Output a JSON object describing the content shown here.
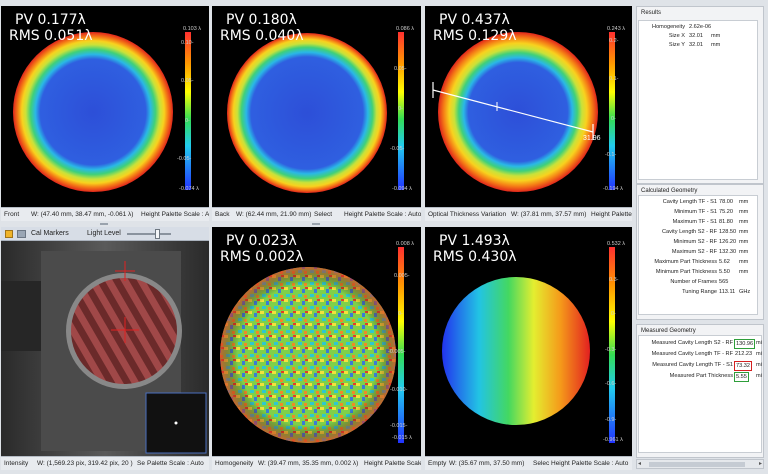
{
  "panels": {
    "front": {
      "pv": "PV 0.177λ",
      "rms": "RMS 0.051λ",
      "ticks": [
        "0.103 λ",
        "0.10-",
        "0.05-",
        "0-",
        "-0.05-",
        "-0.074 λ"
      ],
      "status_name": "Front",
      "status_window": "W: (47.40 mm, 38.47 mm, -0.061 λ)",
      "status_palette": "Height Palette Scale : Au"
    },
    "back": {
      "pv": "PV 0.180λ",
      "rms": "RMS 0.040λ",
      "ticks": [
        "0.086 λ",
        "0.05-",
        "0-",
        "-0.05-",
        "-0.094 λ"
      ],
      "status_name": "Back",
      "status_window": "W: (62.44 mm, 21.90 mm)",
      "status_select": "Select",
      "status_palette": "Height Palette Scale : Auto"
    },
    "otv": {
      "pv": "PV 0.437λ",
      "rms": "RMS 0.129λ",
      "ticks": [
        "0.243 λ",
        "0.2-",
        "0.1-",
        "0-",
        "-0.1-",
        "-0.194 λ"
      ],
      "line_label": "31.96",
      "status_name": "Optical Thickness Variation",
      "status_window": "W: (37.81 mm, 37.57 mm)",
      "status_palette": "Height Palette Scale : Auto"
    },
    "intensity": {
      "toolbar_cal": "Cal Markers",
      "toolbar_light": "Light Level",
      "status_name": "Intensity",
      "status_window": "W: (1,569.23 pix, 319.42 pix, 20 )",
      "status_s": "Se",
      "status_palette": "Palette Scale : Auto"
    },
    "homogeneity": {
      "pv": "PV 0.023λ",
      "rms": "RMS 0.002λ",
      "ticks": [
        "0.008 λ",
        "0.005-",
        "0-",
        "-0.005-",
        "-0.010-",
        "-0.015-",
        "-0.015 λ"
      ],
      "status_name": "Homogeneity",
      "status_window": "W: (39.47 mm, 35.35 mm, 0.002 λ)",
      "status_palette": "Height Palette Scale"
    },
    "empty": {
      "pv": "PV 1.493λ",
      "rms": "RMS 0.430λ",
      "ticks": [
        "0.532 λ",
        "0.3-",
        "0-",
        "-0.3-",
        "-0.6-",
        "-0.9-",
        "-0.961 λ"
      ],
      "status_name": "Empty",
      "status_window": "W: (35.67 mm, 37.50 mm)",
      "status_select": "Selec",
      "status_palette": "Height Palette Scale : Auto"
    }
  },
  "results": {
    "title": "Results",
    "rows": [
      {
        "label": "Homogeneity",
        "value": "2.62e-06",
        "unit": ""
      },
      {
        "label": "Size X",
        "value": "32.01",
        "unit": "mm"
      },
      {
        "label": "Size Y",
        "value": "32.01",
        "unit": "mm"
      }
    ]
  },
  "calculated": {
    "title": "Calculated Geometry",
    "rows": [
      {
        "label": "Cavity Length TF - S1",
        "value": "78.00",
        "unit": "mm"
      },
      {
        "label": "Minimum TF - S1",
        "value": "75.20",
        "unit": "mm"
      },
      {
        "label": "Maximum TF - S1",
        "value": "81.80",
        "unit": "mm"
      },
      {
        "label": "Cavity Length S2 - RF",
        "value": "128.50",
        "unit": "mm"
      },
      {
        "label": "Minimum S2 - RF",
        "value": "126.20",
        "unit": "mm"
      },
      {
        "label": "Maximum S2 - RF",
        "value": "132.30",
        "unit": "mm"
      },
      {
        "label": "Maximum Part Thickness",
        "value": "5.62",
        "unit": "mm"
      },
      {
        "label": "Minimum Part Thickness",
        "value": "5.50",
        "unit": "mm"
      },
      {
        "label": "Number of Frames",
        "value": "565",
        "unit": ""
      },
      {
        "label": "Tuning Range",
        "value": "113.11",
        "unit": "GHz"
      }
    ]
  },
  "measured": {
    "title": "Measured Geometry",
    "rows": [
      {
        "label": "Measured Cavity Length S2 - RF",
        "value": "130.96",
        "unit": "mi",
        "highlight": "#2e9e3a"
      },
      {
        "label": "Measured Cavity Length TF - RF",
        "value": "212.23",
        "unit": "mi",
        "highlight": ""
      },
      {
        "label": "Measured Cavity Length TF - S1",
        "value": "73.32",
        "unit": "mi",
        "highlight": "#d42020"
      },
      {
        "label": "Measured Part Thickness",
        "value": "5.55",
        "unit": "mi",
        "highlight": "#2e9e3a"
      }
    ]
  }
}
